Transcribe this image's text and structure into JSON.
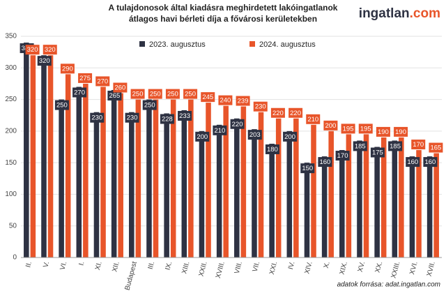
{
  "chart_data": {
    "type": "bar",
    "title": [
      "A tulajdonosok által kiadásra meghirdetett lakóingatlanok",
      "átlagos havi bérleti díja a fővárosi kerületekben"
    ],
    "logo": {
      "name": "ingatlan",
      "suffix": ".com"
    },
    "source": "adatok forrása: adat.ingatlan.com",
    "categories": [
      "II.",
      "V.",
      "VI.",
      "I.",
      "XI.",
      "XII.",
      "Budapest",
      "III.",
      "IX.",
      "XIII.",
      "XXII.",
      "XVIII.",
      "VIII.",
      "VII.",
      "XXI.",
      "IV.",
      "XIV.",
      "X.",
      "XIX.",
      "XV.",
      "XX.",
      "XXIII.",
      "XVI.",
      "XVII."
    ],
    "series": [
      {
        "name": "2023. augusztus",
        "color": "#2e3243",
        "values": [
          340,
          320,
          250,
          270,
          230,
          265,
          230,
          250,
          228,
          233,
          200,
          210,
          220,
          203,
          180,
          200,
          150,
          160,
          170,
          185,
          175,
          185,
          160,
          160
        ]
      },
      {
        "name": "2024. augusztus",
        "color": "#e8552a",
        "values": [
          320,
          320,
          290,
          275,
          270,
          260,
          250,
          250,
          250,
          250,
          245,
          240,
          239,
          230,
          220,
          220,
          210,
          200,
          195,
          195,
          190,
          190,
          170,
          165
        ]
      }
    ],
    "ylim": [
      0,
      350
    ],
    "yticks": [
      0,
      50,
      100,
      150,
      200,
      250,
      300,
      350
    ],
    "grid": true
  }
}
